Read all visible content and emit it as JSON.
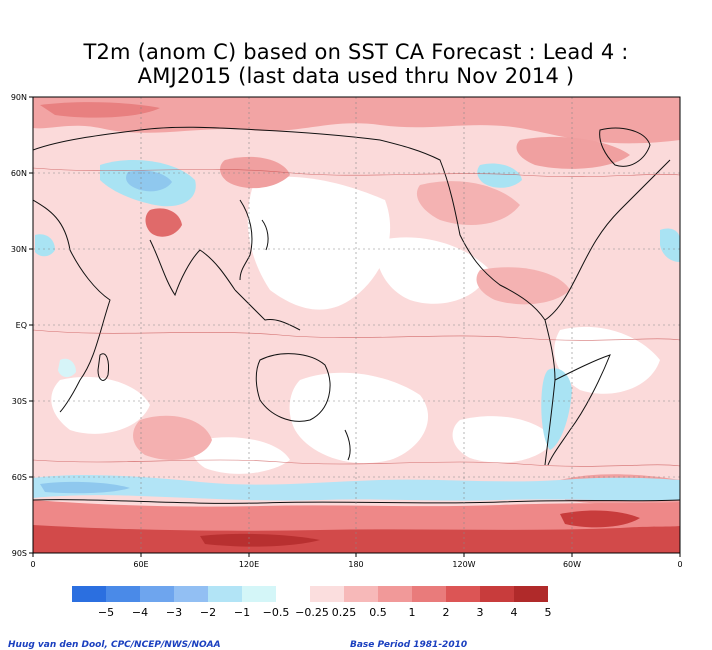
{
  "title_line1": "T2m (anom C) based on SST CA Forecast : Lead 4 :",
  "title_line2": "AMJ2015 (last data used thru Nov 2014 )",
  "map": {
    "lat_labels": [
      "90N",
      "60N",
      "30N",
      "EQ",
      "30S",
      "60S",
      "90S"
    ],
    "lon_labels": [
      "0",
      "60E",
      "120E",
      "180",
      "120W",
      "60W",
      "0"
    ],
    "colors": {
      "ocean_light_pink": "#fbd6d6",
      "mid_pink": "#f4a8a8",
      "salmon": "#ee8888",
      "deep_red": "#d24a4a",
      "neutral": "#ffffff",
      "light_cyan": "#d6f4f8",
      "cyan": "#a9e3f3",
      "light_blue": "#8fc8ee"
    }
  },
  "legend": {
    "colors": [
      "#2b6fe0",
      "#4a8ae8",
      "#6ea5ee",
      "#92bff3",
      "#b2e4f6",
      "#d4f6f8",
      "#ffffff",
      "#fbdede",
      "#f7b9b9",
      "#f19999",
      "#e97b7b",
      "#dc5555",
      "#c83c3c",
      "#b02a2a"
    ],
    "labels": [
      "−5",
      "−4",
      "−3",
      "−2",
      "−1",
      "−0.5",
      "−0.25",
      "0.25",
      "0.5",
      "1",
      "2",
      "3",
      "4",
      "5"
    ]
  },
  "footer": {
    "credit": "Huug van den Dool, CPC/NCEP/NWS/NOAA",
    "base_period": "Base Period 1981-2010"
  }
}
